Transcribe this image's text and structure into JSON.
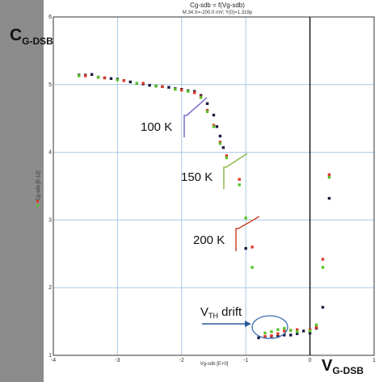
{
  "chart_data": {
    "type": "scatter",
    "title": "Cg-sdb = f(Vg-sdb)",
    "subtitle": "M:34:X=-200.0 mV; Y(0)=1.319p",
    "xlabel": "Vg-sdb  [E+0]",
    "ylabel": "Cg-sdb  [E-12]",
    "xlim": [
      -4,
      1
    ],
    "ylim": [
      1,
      6
    ],
    "grid": true,
    "x_ticks": [
      "-4",
      "-3",
      "-2",
      "-1",
      "0",
      "1"
    ],
    "y_ticks": [
      "1",
      "2",
      "3",
      "4",
      "5",
      "6"
    ],
    "big_ylabel": {
      "main": "C",
      "sub": "G-DSB"
    },
    "big_xlabel": {
      "main": "V",
      "sub": "G-DSB"
    },
    "vth_label": {
      "main": "V",
      "sub": "TH",
      "rest": " drift"
    },
    "annotations": [
      "100 K",
      "150 K",
      "200 K"
    ],
    "vertical_line_x": 0,
    "colors": {
      "dark": "#1a1a40",
      "red": "#e03a2a",
      "green": "#59c22a",
      "grid": "#a8c8e8",
      "accent": "#3a6fb0"
    },
    "series": [
      {
        "color": "#1a1a40",
        "points": [
          [
            -3.6,
            5.14
          ],
          [
            -3.5,
            5.14
          ],
          [
            -3.4,
            5.15
          ],
          [
            -3.3,
            5.11
          ],
          [
            -3.2,
            5.1
          ],
          [
            -3.1,
            5.09
          ],
          [
            -3.0,
            5.08
          ],
          [
            -2.9,
            5.06
          ],
          [
            -2.8,
            5.04
          ],
          [
            -2.7,
            5.02
          ],
          [
            -2.6,
            5.01
          ],
          [
            -2.5,
            4.99
          ],
          [
            -2.4,
            4.98
          ],
          [
            -2.3,
            4.97
          ],
          [
            -2.2,
            4.96
          ],
          [
            -2.1,
            4.94
          ],
          [
            -2.0,
            4.93
          ],
          [
            -1.9,
            4.91
          ],
          [
            -1.8,
            4.9
          ],
          [
            -1.7,
            4.84
          ],
          [
            -1.6,
            4.72
          ],
          [
            -1.5,
            4.55
          ],
          [
            -1.45,
            4.38
          ],
          [
            -1.4,
            4.24
          ],
          [
            -1.35,
            4.07
          ],
          [
            -1.0,
            2.58
          ],
          [
            -0.8,
            1.26
          ],
          [
            -0.7,
            1.27
          ],
          [
            -0.6,
            1.28
          ],
          [
            -0.5,
            1.28
          ],
          [
            -0.4,
            1.3
          ],
          [
            -0.3,
            1.3
          ],
          [
            -0.2,
            1.32
          ],
          [
            -0.1,
            1.36
          ],
          [
            0.0,
            1.33
          ],
          [
            0.1,
            1.4
          ],
          [
            0.2,
            1.71
          ],
          [
            0.3,
            3.32
          ]
        ]
      },
      {
        "color": "#e03a2a",
        "points": [
          [
            -3.5,
            5.13
          ],
          [
            -3.2,
            5.1
          ],
          [
            -2.9,
            5.06
          ],
          [
            -2.6,
            5.02
          ],
          [
            -2.3,
            4.97
          ],
          [
            -2.0,
            4.92
          ],
          [
            -1.8,
            4.88
          ],
          [
            -1.7,
            4.82
          ],
          [
            -1.6,
            4.62
          ],
          [
            -1.5,
            4.4
          ],
          [
            -1.4,
            4.15
          ],
          [
            -1.3,
            3.95
          ],
          [
            -1.1,
            3.6
          ],
          [
            -0.9,
            2.6
          ],
          [
            -0.7,
            1.28
          ],
          [
            -0.6,
            1.29
          ],
          [
            -0.5,
            1.32
          ],
          [
            -0.4,
            1.36
          ],
          [
            -0.3,
            1.37
          ],
          [
            -0.2,
            1.38
          ],
          [
            0.0,
            1.38
          ],
          [
            0.1,
            1.41
          ],
          [
            0.2,
            2.42
          ],
          [
            0.3,
            3.67
          ]
        ]
      },
      {
        "color": "#59c22a",
        "points": [
          [
            -3.6,
            5.13
          ],
          [
            -3.3,
            5.11
          ],
          [
            -3.0,
            5.07
          ],
          [
            -2.7,
            5.02
          ],
          [
            -2.4,
            4.98
          ],
          [
            -2.1,
            4.93
          ],
          [
            -1.9,
            4.9
          ],
          [
            -1.7,
            4.81
          ],
          [
            -1.6,
            4.6
          ],
          [
            -1.5,
            4.38
          ],
          [
            -1.4,
            4.13
          ],
          [
            -1.3,
            3.92
          ],
          [
            -1.1,
            3.52
          ],
          [
            -1.0,
            3.03
          ],
          [
            -0.9,
            2.3
          ],
          [
            -0.7,
            1.33
          ],
          [
            -0.6,
            1.35
          ],
          [
            -0.5,
            1.38
          ],
          [
            -0.4,
            1.4
          ],
          [
            -0.3,
            1.37
          ],
          [
            -0.2,
            1.35
          ],
          [
            0.0,
            1.36
          ],
          [
            0.1,
            1.45
          ],
          [
            0.2,
            2.3
          ],
          [
            0.3,
            3.63
          ]
        ]
      }
    ]
  }
}
